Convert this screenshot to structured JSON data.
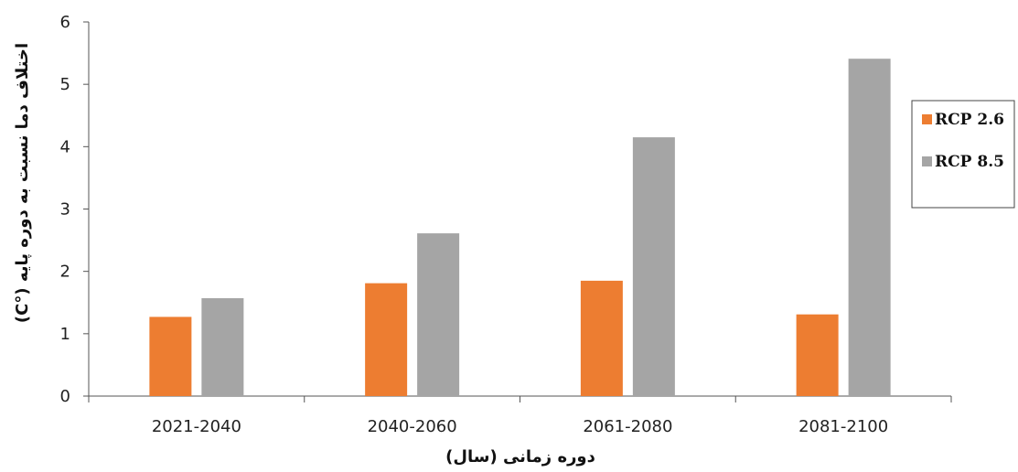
{
  "chart_data": {
    "type": "bar",
    "categories": [
      "2021-2040",
      "2040-2060",
      "2061-2080",
      "2081-2100"
    ],
    "series": [
      {
        "name": "RCP 2.6",
        "color": "#ED7D31",
        "values": [
          1.27,
          1.81,
          1.85,
          1.31
        ]
      },
      {
        "name": "RCP 8.5",
        "color": "#A5A5A5",
        "values": [
          1.57,
          2.61,
          4.15,
          5.41
        ]
      }
    ],
    "title": "",
    "xlabel": "دوره زمانی (سال)",
    "ylabel": "اختلاف دما نسبت به دوره پایه (°C)",
    "ylim": [
      0,
      6
    ],
    "yticks": [
      0,
      1,
      2,
      3,
      4,
      5,
      6
    ],
    "grid": false,
    "legend_position": "right"
  }
}
